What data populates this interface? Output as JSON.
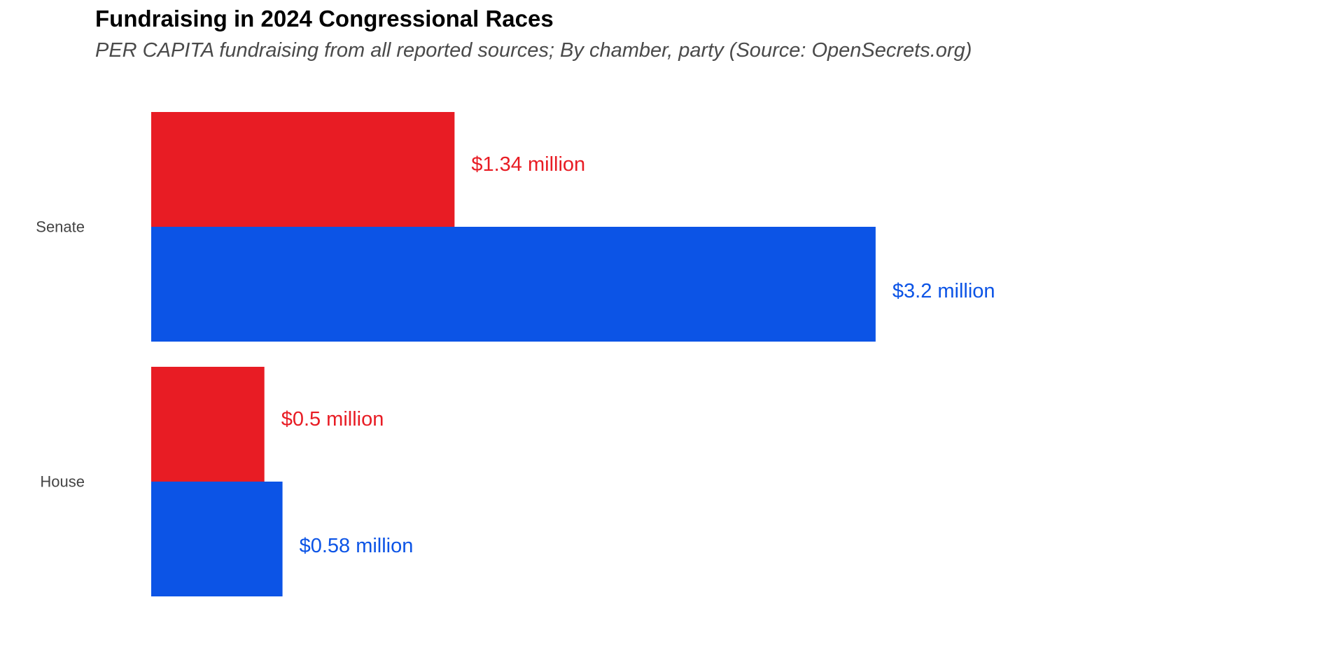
{
  "chart_data": {
    "type": "bar",
    "orientation": "horizontal",
    "title": "Fundraising in 2024 Congressional Races",
    "subtitle": "PER CAPITA fundraising from all reported sources; By chamber, party (Source: OpenSecrets.org)",
    "xlabel": "",
    "ylabel": "",
    "categories": [
      "Senate",
      "House"
    ],
    "series": [
      {
        "color": "#e81c24",
        "values": [
          1.34,
          0.5
        ],
        "labels": [
          "$1.34 million",
          "$0.5 million"
        ]
      },
      {
        "color": "#0c54e6",
        "values": [
          3.2,
          0.58
        ],
        "labels": [
          "$3.2 million",
          "$0.58 million"
        ]
      }
    ],
    "xlim": [
      0,
      3.2
    ],
    "grid": false,
    "legend": "none"
  }
}
